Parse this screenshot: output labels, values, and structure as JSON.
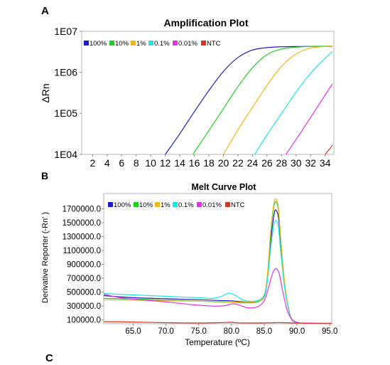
{
  "panels": {
    "a_label": "A",
    "b_label": "B",
    "c_label": "C"
  },
  "chart_data": [
    {
      "type": "line",
      "title": "Amplification Plot",
      "xlabel": "",
      "ylabel": "ΔRn",
      "y_scale": "log",
      "xlim": [
        0.5,
        35.2
      ],
      "ylim": [
        10000,
        10000000
      ],
      "x_ticks": [
        2,
        4,
        6,
        8,
        10,
        12,
        14,
        16,
        18,
        20,
        22,
        24,
        26,
        28,
        30,
        32,
        34
      ],
      "x_tick_labels": [
        "2",
        "4",
        "6",
        "8",
        "10",
        "12",
        "14",
        "16",
        "18",
        "20",
        "22",
        "24",
        "26",
        "28",
        "30",
        "32",
        "34"
      ],
      "y_ticks": [
        10000,
        100000,
        1000000,
        10000000
      ],
      "y_tick_labels": [
        "1E04",
        "1E05",
        "1E06",
        "1E07"
      ],
      "grid": false,
      "legend_position": "top-left",
      "series": [
        {
          "name": "100%",
          "color": "#1c1cc8",
          "x": [
            12.0,
            14.0,
            16.0,
            18.0,
            20.0,
            22.0,
            24.0,
            26.0,
            28.0,
            30.0,
            32.0,
            35.0
          ],
          "y": [
            10000,
            32000,
            110000,
            360000,
            1050000,
            2300000,
            3500000,
            4000000,
            4200000,
            4250000,
            4300000,
            4300000
          ]
        },
        {
          "name": "10%",
          "color": "#22cc22",
          "x": [
            15.8,
            18.0,
            20.0,
            22.0,
            24.0,
            26.0,
            28.0,
            30.0,
            32.0,
            35.0
          ],
          "y": [
            10000,
            38000,
            130000,
            450000,
            1300000,
            2700000,
            3700000,
            4100000,
            4300000,
            4350000
          ]
        },
        {
          "name": "1%",
          "color": "#f0b81e",
          "x": [
            20.0,
            22.0,
            24.0,
            26.0,
            28.0,
            30.0,
            32.0,
            35.0
          ],
          "y": [
            10000,
            40000,
            140000,
            480000,
            1400000,
            2800000,
            3900000,
            4400000
          ]
        },
        {
          "name": "0.1%",
          "color": "#1ee6e6",
          "x": [
            24.3,
            26.0,
            28.0,
            30.0,
            32.0,
            34.0,
            35.0
          ],
          "y": [
            10000,
            30000,
            100000,
            330000,
            950000,
            2200000,
            3200000
          ]
        },
        {
          "name": "0.01%",
          "color": "#e632e6",
          "x": [
            28.6,
            30.0,
            32.0,
            34.0,
            35.0
          ],
          "y": [
            10000,
            23000,
            80000,
            280000,
            520000
          ]
        },
        {
          "name": "NTC",
          "color": "#e0321e",
          "x": [
            34.0,
            34.6,
            35.0
          ],
          "y": [
            10000,
            13500,
            17000
          ]
        }
      ]
    },
    {
      "type": "line",
      "title": "Melt Curve Plot",
      "xlabel": "Temperature (ºC)",
      "ylabel": "Derivative Reporter (-Rn' )",
      "xlim": [
        60.5,
        95.3
      ],
      "ylim": [
        45000,
        1920000
      ],
      "x_ticks": [
        65,
        70,
        75,
        80,
        85,
        90,
        95
      ],
      "x_tick_labels": [
        "65.0",
        "70.0",
        "75.0",
        "80.0",
        "85.0",
        "90.0",
        "95.0"
      ],
      "y_ticks": [
        100000,
        300000,
        500000,
        700000,
        900000,
        1100000,
        1300000,
        1500000,
        1700000
      ],
      "y_tick_labels": [
        "100000.0",
        "300000.0",
        "500000.0",
        "700000.0",
        "900000.0",
        "1100000.0",
        "1300000.0",
        "1500000.0",
        "1700000.0"
      ],
      "grid": false,
      "legend_position": "top-left",
      "series": [
        {
          "name": "100%",
          "color": "#1c1cc8",
          "x": [
            60.5,
            65,
            70,
            75,
            78,
            80,
            82,
            84,
            85,
            85.5,
            86,
            86.5,
            86.8,
            87.2,
            87.6,
            88.2,
            89,
            90,
            92,
            95.3
          ],
          "y": [
            450000,
            420000,
            405000,
            390000,
            380000,
            375000,
            360000,
            370000,
            440000,
            700000,
            1250000,
            1620000,
            1680000,
            1550000,
            1100000,
            550000,
            150000,
            60000,
            50000,
            45000
          ]
        },
        {
          "name": "10%",
          "color": "#22cc22",
          "x": [
            60.5,
            65,
            70,
            75,
            78,
            80,
            82,
            84,
            85,
            85.5,
            86,
            86.5,
            86.9,
            87.2,
            87.6,
            88.2,
            89,
            90,
            92,
            95.3
          ],
          "y": [
            410000,
            400000,
            385000,
            370000,
            360000,
            355000,
            345000,
            360000,
            450000,
            750000,
            1350000,
            1750000,
            1790000,
            1640000,
            1150000,
            560000,
            160000,
            60000,
            50000,
            45000
          ]
        },
        {
          "name": "1%",
          "color": "#f0b81e",
          "x": [
            60.5,
            65,
            70,
            75,
            78,
            80,
            82,
            84,
            85,
            85.5,
            86,
            86.5,
            86.9,
            87.2,
            87.6,
            88.2,
            89,
            90,
            92,
            95.3
          ],
          "y": [
            390000,
            385000,
            375000,
            370000,
            365000,
            360000,
            355000,
            370000,
            460000,
            780000,
            1400000,
            1790000,
            1830000,
            1680000,
            1180000,
            570000,
            160000,
            60000,
            50000,
            45000
          ]
        },
        {
          "name": "0.1%",
          "color": "#1ee6e6",
          "x": [
            60.5,
            65,
            70,
            75,
            77,
            78.5,
            79.5,
            80.5,
            81.5,
            82.5,
            84,
            85,
            85.5,
            86,
            86.5,
            86.9,
            87.2,
            87.6,
            88.2,
            89,
            90,
            92,
            95.3
          ],
          "y": [
            480000,
            460000,
            440000,
            420000,
            410000,
            440000,
            485000,
            460000,
            400000,
            370000,
            380000,
            460000,
            680000,
            1150000,
            1480000,
            1520000,
            1400000,
            1000000,
            500000,
            150000,
            60000,
            50000,
            45000
          ]
        },
        {
          "name": "0.01%",
          "color": "#e632e6",
          "x": [
            60.5,
            63,
            66,
            70,
            74,
            77,
            79,
            80,
            81,
            82.5,
            84,
            85,
            85.7,
            86.3,
            86.8,
            87.3,
            87.8,
            88.5,
            89.3,
            90.5,
            92,
            95.3
          ],
          "y": [
            470000,
            420000,
            390000,
            360000,
            320000,
            300000,
            305000,
            330000,
            320000,
            275000,
            290000,
            380000,
            580000,
            780000,
            840000,
            760000,
            520000,
            240000,
            100000,
            55000,
            45000,
            40000
          ]
        },
        {
          "name": "NTC",
          "color": "#e0321e",
          "x": [
            60.5,
            65,
            70,
            75,
            78,
            80,
            81,
            83,
            86,
            87,
            90,
            95.3
          ],
          "y": [
            75000,
            70000,
            60000,
            55000,
            60000,
            65000,
            58000,
            55000,
            58000,
            62000,
            55000,
            52000
          ]
        }
      ]
    }
  ]
}
